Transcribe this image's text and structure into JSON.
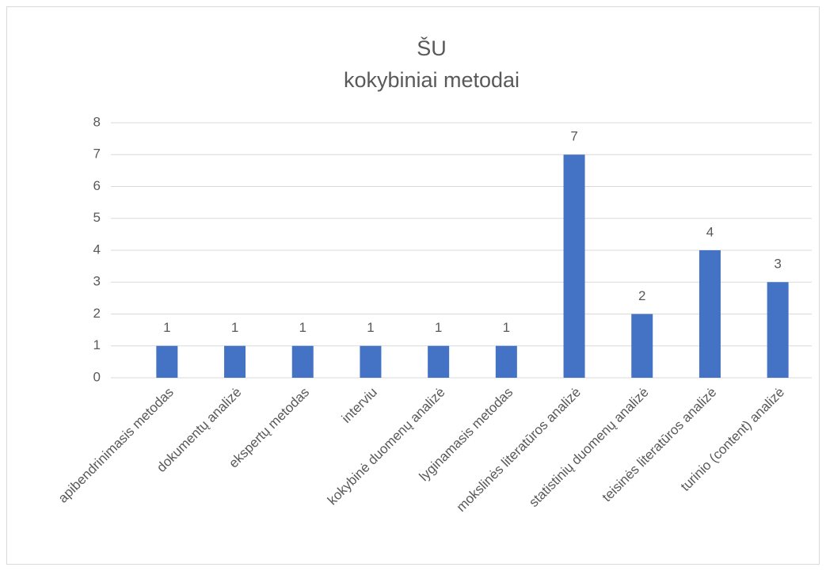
{
  "chart_data": {
    "type": "bar",
    "title": [
      "ŠU",
      "kokybiniai metodai"
    ],
    "categories": [
      "apibendrinimasis metodas",
      "dokumentų analizė",
      "ekspertų metodas",
      "interviu",
      "kokybinė duomenų analizė",
      "lyginamasis metodas",
      "mokslinės literatūros analizė",
      "statistinių duomenų analizė",
      "teisinės literatūros analizė",
      "turinio (content) analizė"
    ],
    "values": [
      1,
      1,
      1,
      1,
      1,
      1,
      7,
      2,
      4,
      3
    ],
    "color": "#4472c4",
    "ylim": [
      0,
      8
    ],
    "yticks": [
      0,
      1,
      2,
      3,
      4,
      5,
      6,
      7,
      8
    ],
    "grid": true
  }
}
